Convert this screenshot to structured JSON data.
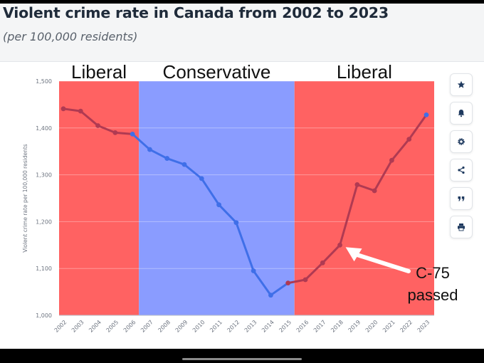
{
  "header": {
    "title": "Violent crime rate in Canada from 2002 to 2023",
    "subtitle": "(per 100,000 residents)"
  },
  "chart_data": {
    "type": "line",
    "title": "Violent crime rate in Canada from 2002 to 2023",
    "subtitle": "(per 100,000 residents)",
    "xlabel": "",
    "ylabel": "Violent crime rate per 100,000 residents",
    "ylim": [
      1000,
      1500
    ],
    "yticks": [
      1000,
      1100,
      1200,
      1300,
      1400,
      1500
    ],
    "ytick_labels": [
      "1,000",
      "1,100",
      "1,200",
      "1,300",
      "1,400",
      "1,500"
    ],
    "grid": true,
    "categories": [
      "2002",
      "2003",
      "2004",
      "2005",
      "2006",
      "2007",
      "2008",
      "2009",
      "2010",
      "2011",
      "2012",
      "2013",
      "2014",
      "2015",
      "2016",
      "2017",
      "2018",
      "2019",
      "2020",
      "2021",
      "2022",
      "2023"
    ],
    "values": [
      1441,
      1436,
      1405,
      1390,
      1387,
      1354,
      1335,
      1322,
      1292,
      1236,
      1198,
      1095,
      1043,
      1069,
      1076,
      1112,
      1150,
      1279,
      1266,
      1331,
      1376,
      1428
    ],
    "series_colors": {
      "liberal": "#b03a52",
      "conservative": "#3f6fe8"
    },
    "periods": [
      {
        "label": "Liberal",
        "start": 2002,
        "end": 2006,
        "color": "#ff6262"
      },
      {
        "label": "Conservative",
        "start": 2006,
        "end": 2015,
        "color": "#8a9cff"
      },
      {
        "label": "Liberal",
        "start": 2015,
        "end": 2023,
        "color": "#ff6262"
      }
    ],
    "annotation": {
      "text_line1": "C-75",
      "text_line2": "passed",
      "points_to": "2018"
    }
  },
  "toolbar": {
    "buttons": [
      {
        "name": "star",
        "icon": "star-icon"
      },
      {
        "name": "bell",
        "icon": "bell-icon"
      },
      {
        "name": "gear",
        "icon": "gear-icon"
      },
      {
        "name": "share",
        "icon": "share-icon"
      },
      {
        "name": "quote",
        "icon": "quote-icon"
      },
      {
        "name": "print",
        "icon": "print-icon"
      }
    ]
  }
}
